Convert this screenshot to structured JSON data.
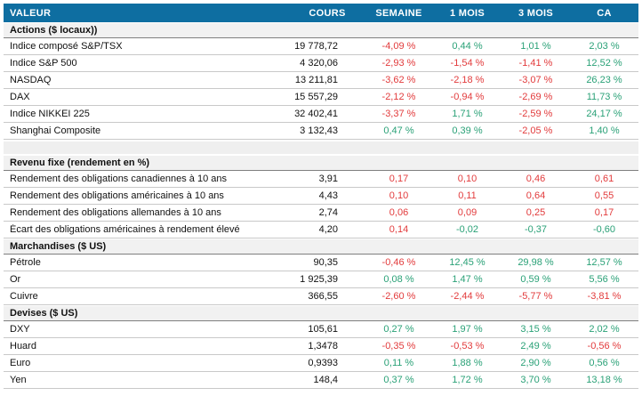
{
  "colors": {
    "header_bg": "#0E6EA1",
    "header_text": "#FFFFFF",
    "section_bg": "#F1F1F1",
    "section_border": "#7F7F7F",
    "row_border": "#C9C9C9",
    "negative_red": "#E23B3C",
    "positive_green": "#2AA177"
  },
  "chart_data": {
    "type": "table",
    "columns": [
      "VALEUR",
      "COURS",
      "SEMAINE",
      "1 MOIS",
      "3 MOIS",
      "CA"
    ],
    "sections": [
      {
        "title": "Actions ($ locaux))",
        "spacer_after": true,
        "rows": [
          {
            "label": "Indice composé S&P/TSX",
            "cours": "19 778,72",
            "changes": [
              {
                "text": "-4,09 %",
                "color": "red"
              },
              {
                "text": "0,44 %",
                "color": "green"
              },
              {
                "text": "1,01 %",
                "color": "green"
              },
              {
                "text": "2,03 %",
                "color": "green"
              }
            ]
          },
          {
            "label": "Indice S&P 500",
            "cours": "4 320,06",
            "changes": [
              {
                "text": "-2,93 %",
                "color": "red"
              },
              {
                "text": "-1,54 %",
                "color": "red"
              },
              {
                "text": "-1,41 %",
                "color": "red"
              },
              {
                "text": "12,52 %",
                "color": "green"
              }
            ]
          },
          {
            "label": "NASDAQ",
            "cours": "13 211,81",
            "changes": [
              {
                "text": "-3,62 %",
                "color": "red"
              },
              {
                "text": "-2,18 %",
                "color": "red"
              },
              {
                "text": "-3,07 %",
                "color": "red"
              },
              {
                "text": "26,23 %",
                "color": "green"
              }
            ]
          },
          {
            "label": "DAX",
            "cours": "15 557,29",
            "changes": [
              {
                "text": "-2,12 %",
                "color": "red"
              },
              {
                "text": "-0,94 %",
                "color": "red"
              },
              {
                "text": "-2,69 %",
                "color": "red"
              },
              {
                "text": "11,73 %",
                "color": "green"
              }
            ]
          },
          {
            "label": "Indice NIKKEI 225",
            "cours": "32 402,41",
            "changes": [
              {
                "text": "-3,37 %",
                "color": "red"
              },
              {
                "text": "1,71 %",
                "color": "green"
              },
              {
                "text": "-2,59 %",
                "color": "red"
              },
              {
                "text": "24,17 %",
                "color": "green"
              }
            ]
          },
          {
            "label": "Shanghai Composite",
            "cours": "3 132,43",
            "changes": [
              {
                "text": "0,47 %",
                "color": "green"
              },
              {
                "text": "0,39 %",
                "color": "green"
              },
              {
                "text": "-2,05 %",
                "color": "red"
              },
              {
                "text": "1,40 %",
                "color": "green"
              }
            ]
          }
        ]
      },
      {
        "title": "Revenu fixe (rendement en %)",
        "spacer_after": false,
        "rows": [
          {
            "label": "Rendement des obligations canadiennes à 10 ans",
            "cours": "3,91",
            "changes": [
              {
                "text": "0,17",
                "color": "red"
              },
              {
                "text": "0,10",
                "color": "red"
              },
              {
                "text": "0,46",
                "color": "red"
              },
              {
                "text": "0,61",
                "color": "red"
              }
            ]
          },
          {
            "label": "Rendement des obligations américaines à 10 ans",
            "cours": "4,43",
            "changes": [
              {
                "text": "0,10",
                "color": "red"
              },
              {
                "text": "0,11",
                "color": "red"
              },
              {
                "text": "0,64",
                "color": "red"
              },
              {
                "text": "0,55",
                "color": "red"
              }
            ]
          },
          {
            "label": "Rendement des obligations allemandes à 10 ans",
            "cours": "2,74",
            "changes": [
              {
                "text": "0,06",
                "color": "red"
              },
              {
                "text": "0,09",
                "color": "red"
              },
              {
                "text": "0,25",
                "color": "red"
              },
              {
                "text": "0,17",
                "color": "red"
              }
            ]
          },
          {
            "label": "Écart des obligations américaines à rendement élevé",
            "cours": "4,20",
            "changes": [
              {
                "text": "0,14",
                "color": "red"
              },
              {
                "text": "-0,02",
                "color": "green"
              },
              {
                "text": "-0,37",
                "color": "green"
              },
              {
                "text": "-0,60",
                "color": "green"
              }
            ]
          }
        ]
      },
      {
        "title": "Marchandises ($ US)",
        "spacer_after": false,
        "rows": [
          {
            "label": "Pétrole",
            "cours": "90,35",
            "changes": [
              {
                "text": "-0,46 %",
                "color": "red"
              },
              {
                "text": "12,45 %",
                "color": "green"
              },
              {
                "text": "29,98 %",
                "color": "green"
              },
              {
                "text": "12,57 %",
                "color": "green"
              }
            ]
          },
          {
            "label": "Or",
            "cours": "1 925,39",
            "changes": [
              {
                "text": "0,08 %",
                "color": "green"
              },
              {
                "text": "1,47 %",
                "color": "green"
              },
              {
                "text": "0,59 %",
                "color": "green"
              },
              {
                "text": "5,56 %",
                "color": "green"
              }
            ]
          },
          {
            "label": "Cuivre",
            "cours": "366,55",
            "changes": [
              {
                "text": "-2,60 %",
                "color": "red"
              },
              {
                "text": "-2,44 %",
                "color": "red"
              },
              {
                "text": "-5,77 %",
                "color": "red"
              },
              {
                "text": "-3,81 %",
                "color": "red"
              }
            ]
          }
        ]
      },
      {
        "title": "Devises ($ US)",
        "spacer_after": false,
        "rows": [
          {
            "label": "DXY",
            "cours": "105,61",
            "changes": [
              {
                "text": "0,27 %",
                "color": "green"
              },
              {
                "text": "1,97 %",
                "color": "green"
              },
              {
                "text": "3,15 %",
                "color": "green"
              },
              {
                "text": "2,02 %",
                "color": "green"
              }
            ]
          },
          {
            "label": "Huard",
            "cours": "1,3478",
            "changes": [
              {
                "text": "-0,35 %",
                "color": "red"
              },
              {
                "text": "-0,53 %",
                "color": "red"
              },
              {
                "text": "2,49 %",
                "color": "green"
              },
              {
                "text": "-0,56 %",
                "color": "red"
              }
            ]
          },
          {
            "label": "Euro",
            "cours": "0,9393",
            "changes": [
              {
                "text": "0,11 %",
                "color": "green"
              },
              {
                "text": "1,88 %",
                "color": "green"
              },
              {
                "text": "2,90 %",
                "color": "green"
              },
              {
                "text": "0,56 %",
                "color": "green"
              }
            ]
          },
          {
            "label": "Yen",
            "cours": "148,4",
            "changes": [
              {
                "text": "0,37 %",
                "color": "green"
              },
              {
                "text": "1,72 %",
                "color": "green"
              },
              {
                "text": "3,70 %",
                "color": "green"
              },
              {
                "text": "13,18 %",
                "color": "green"
              }
            ]
          }
        ]
      }
    ]
  }
}
